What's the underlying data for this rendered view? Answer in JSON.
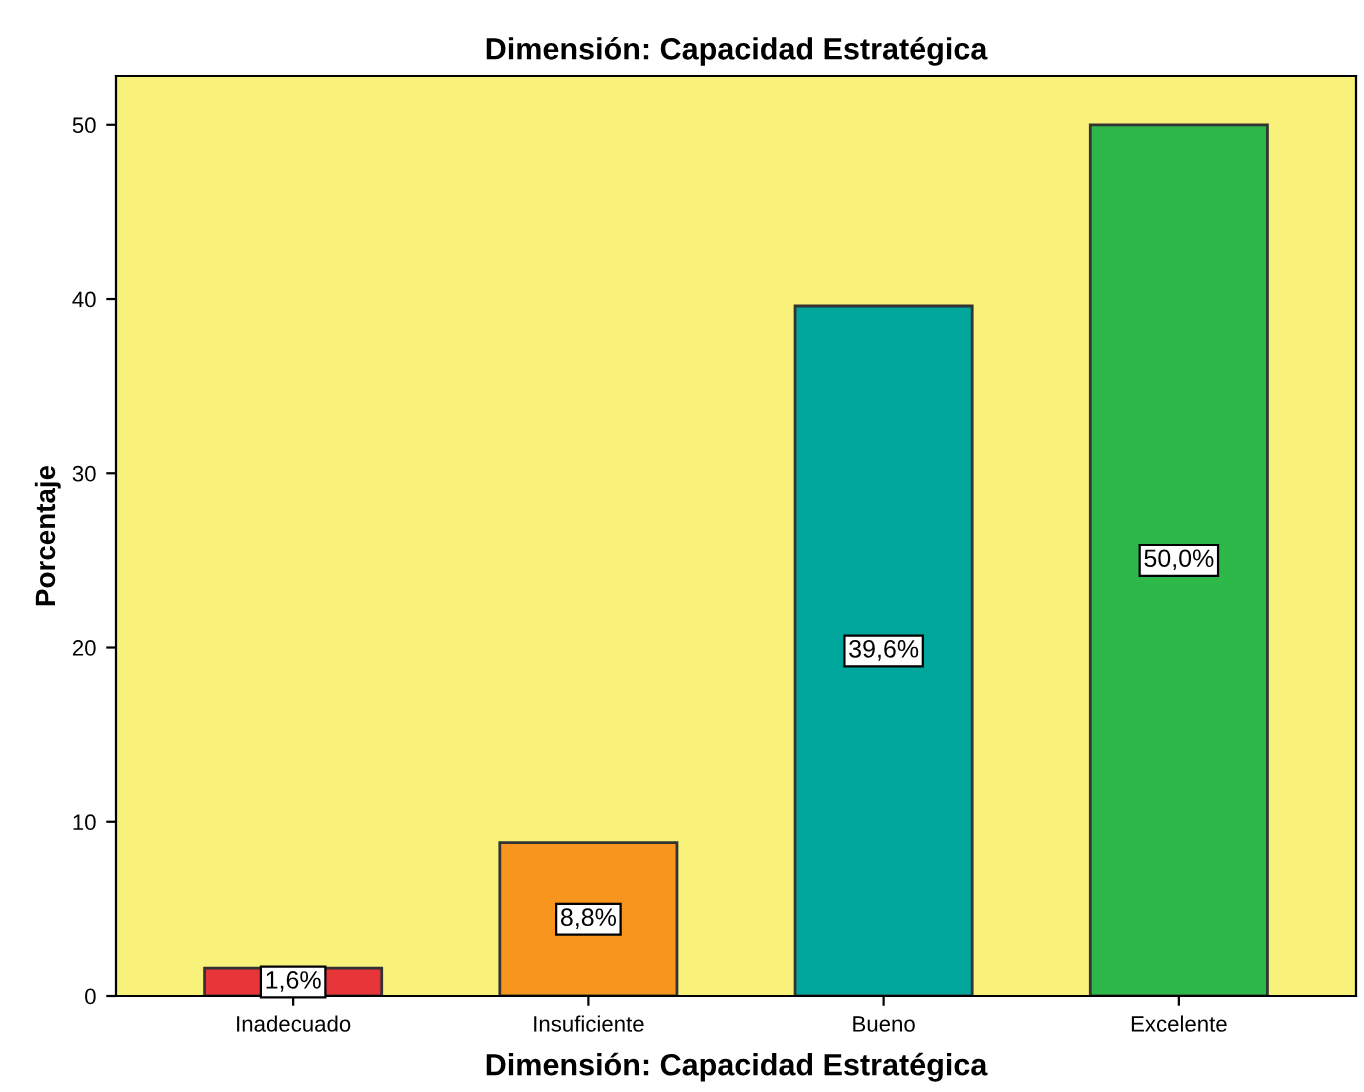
{
  "chart_data": {
    "type": "bar",
    "title": "Dimensión: Capacidad Estratégica",
    "xlabel": "Dimensión: Capacidad Estratégica",
    "ylabel": "Porcentaje",
    "categories": [
      "Inadecuado",
      "Insuficiente",
      "Bueno",
      "Excelente"
    ],
    "values": [
      1.6,
      8.8,
      39.6,
      50.0
    ],
    "colors": [
      "#e8353a",
      "#f7951e",
      "#00a59c",
      "#2eb84a"
    ],
    "value_labels": [
      "1,6%",
      "8,8%",
      "39,6%",
      "50,0%"
    ],
    "ylim": [
      0,
      52.8
    ],
    "yticks": [
      0,
      10,
      20,
      30,
      40,
      50
    ],
    "grid": false
  }
}
